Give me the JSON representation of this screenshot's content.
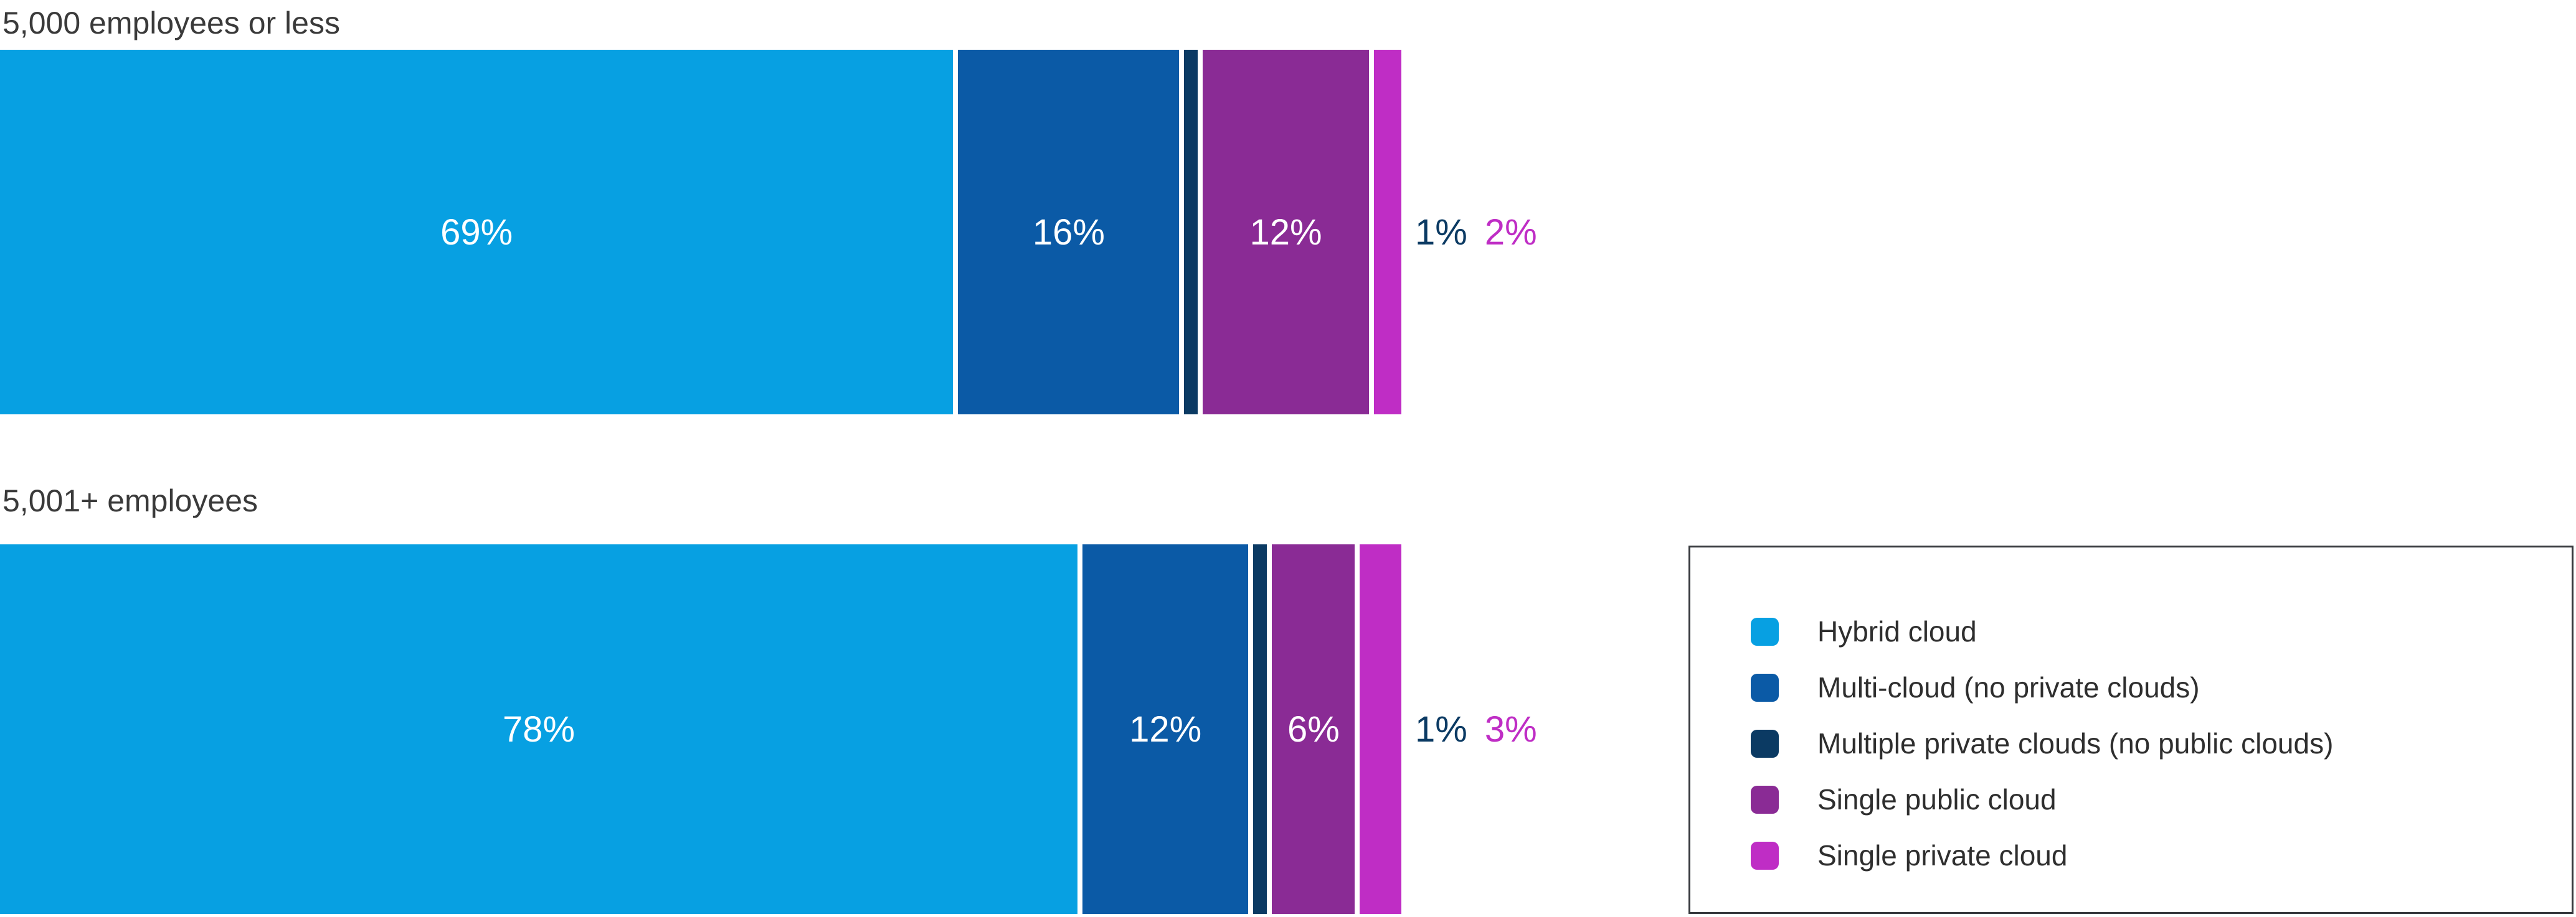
{
  "chart_data": {
    "type": "bar",
    "variant": "100-percent-stacked",
    "orientation": "horizontal",
    "unit": "%",
    "grid": false,
    "axes_hidden": true,
    "legend_position": "bottom-right",
    "legend_border": true,
    "series": [
      {
        "name": "Hybrid cloud",
        "color": "#07a0e2"
      },
      {
        "name": "Multi-cloud (no private clouds)",
        "color": "#0b5aa6"
      },
      {
        "name": "Multiple private clouds (no public clouds)",
        "color": "#0b3a63"
      },
      {
        "name": "Single public cloud",
        "color": "#8a2b95"
      },
      {
        "name": "Single private cloud",
        "color": "#bf2dc5"
      }
    ],
    "groups": [
      {
        "title": "5,000 employees or less",
        "segments": [
          {
            "series_index": 0,
            "value": 69,
            "label": "69%"
          },
          {
            "series_index": 1,
            "value": 16,
            "label": "16%"
          },
          {
            "series_index": 2,
            "value": 1,
            "label": ""
          },
          {
            "series_index": 3,
            "value": 12,
            "label": "12%"
          },
          {
            "series_index": 4,
            "value": 2,
            "label": ""
          }
        ],
        "outside_labels": [
          {
            "text": "1%",
            "series_index": 2,
            "color": "#0b3a63"
          },
          {
            "text": "2%",
            "series_index": 4,
            "color": "#bf2dc5"
          }
        ]
      },
      {
        "title": "5,001+ employees",
        "segments": [
          {
            "series_index": 0,
            "value": 78,
            "label": "78%"
          },
          {
            "series_index": 1,
            "value": 12,
            "label": "12%"
          },
          {
            "series_index": 2,
            "value": 1,
            "label": ""
          },
          {
            "series_index": 3,
            "value": 6,
            "label": "6%"
          },
          {
            "series_index": 4,
            "value": 3,
            "label": ""
          }
        ],
        "outside_labels": [
          {
            "text": "1%",
            "series_index": 2,
            "color": "#0b3a63"
          },
          {
            "text": "3%",
            "series_index": 4,
            "color": "#bf2dc5"
          }
        ]
      }
    ]
  }
}
